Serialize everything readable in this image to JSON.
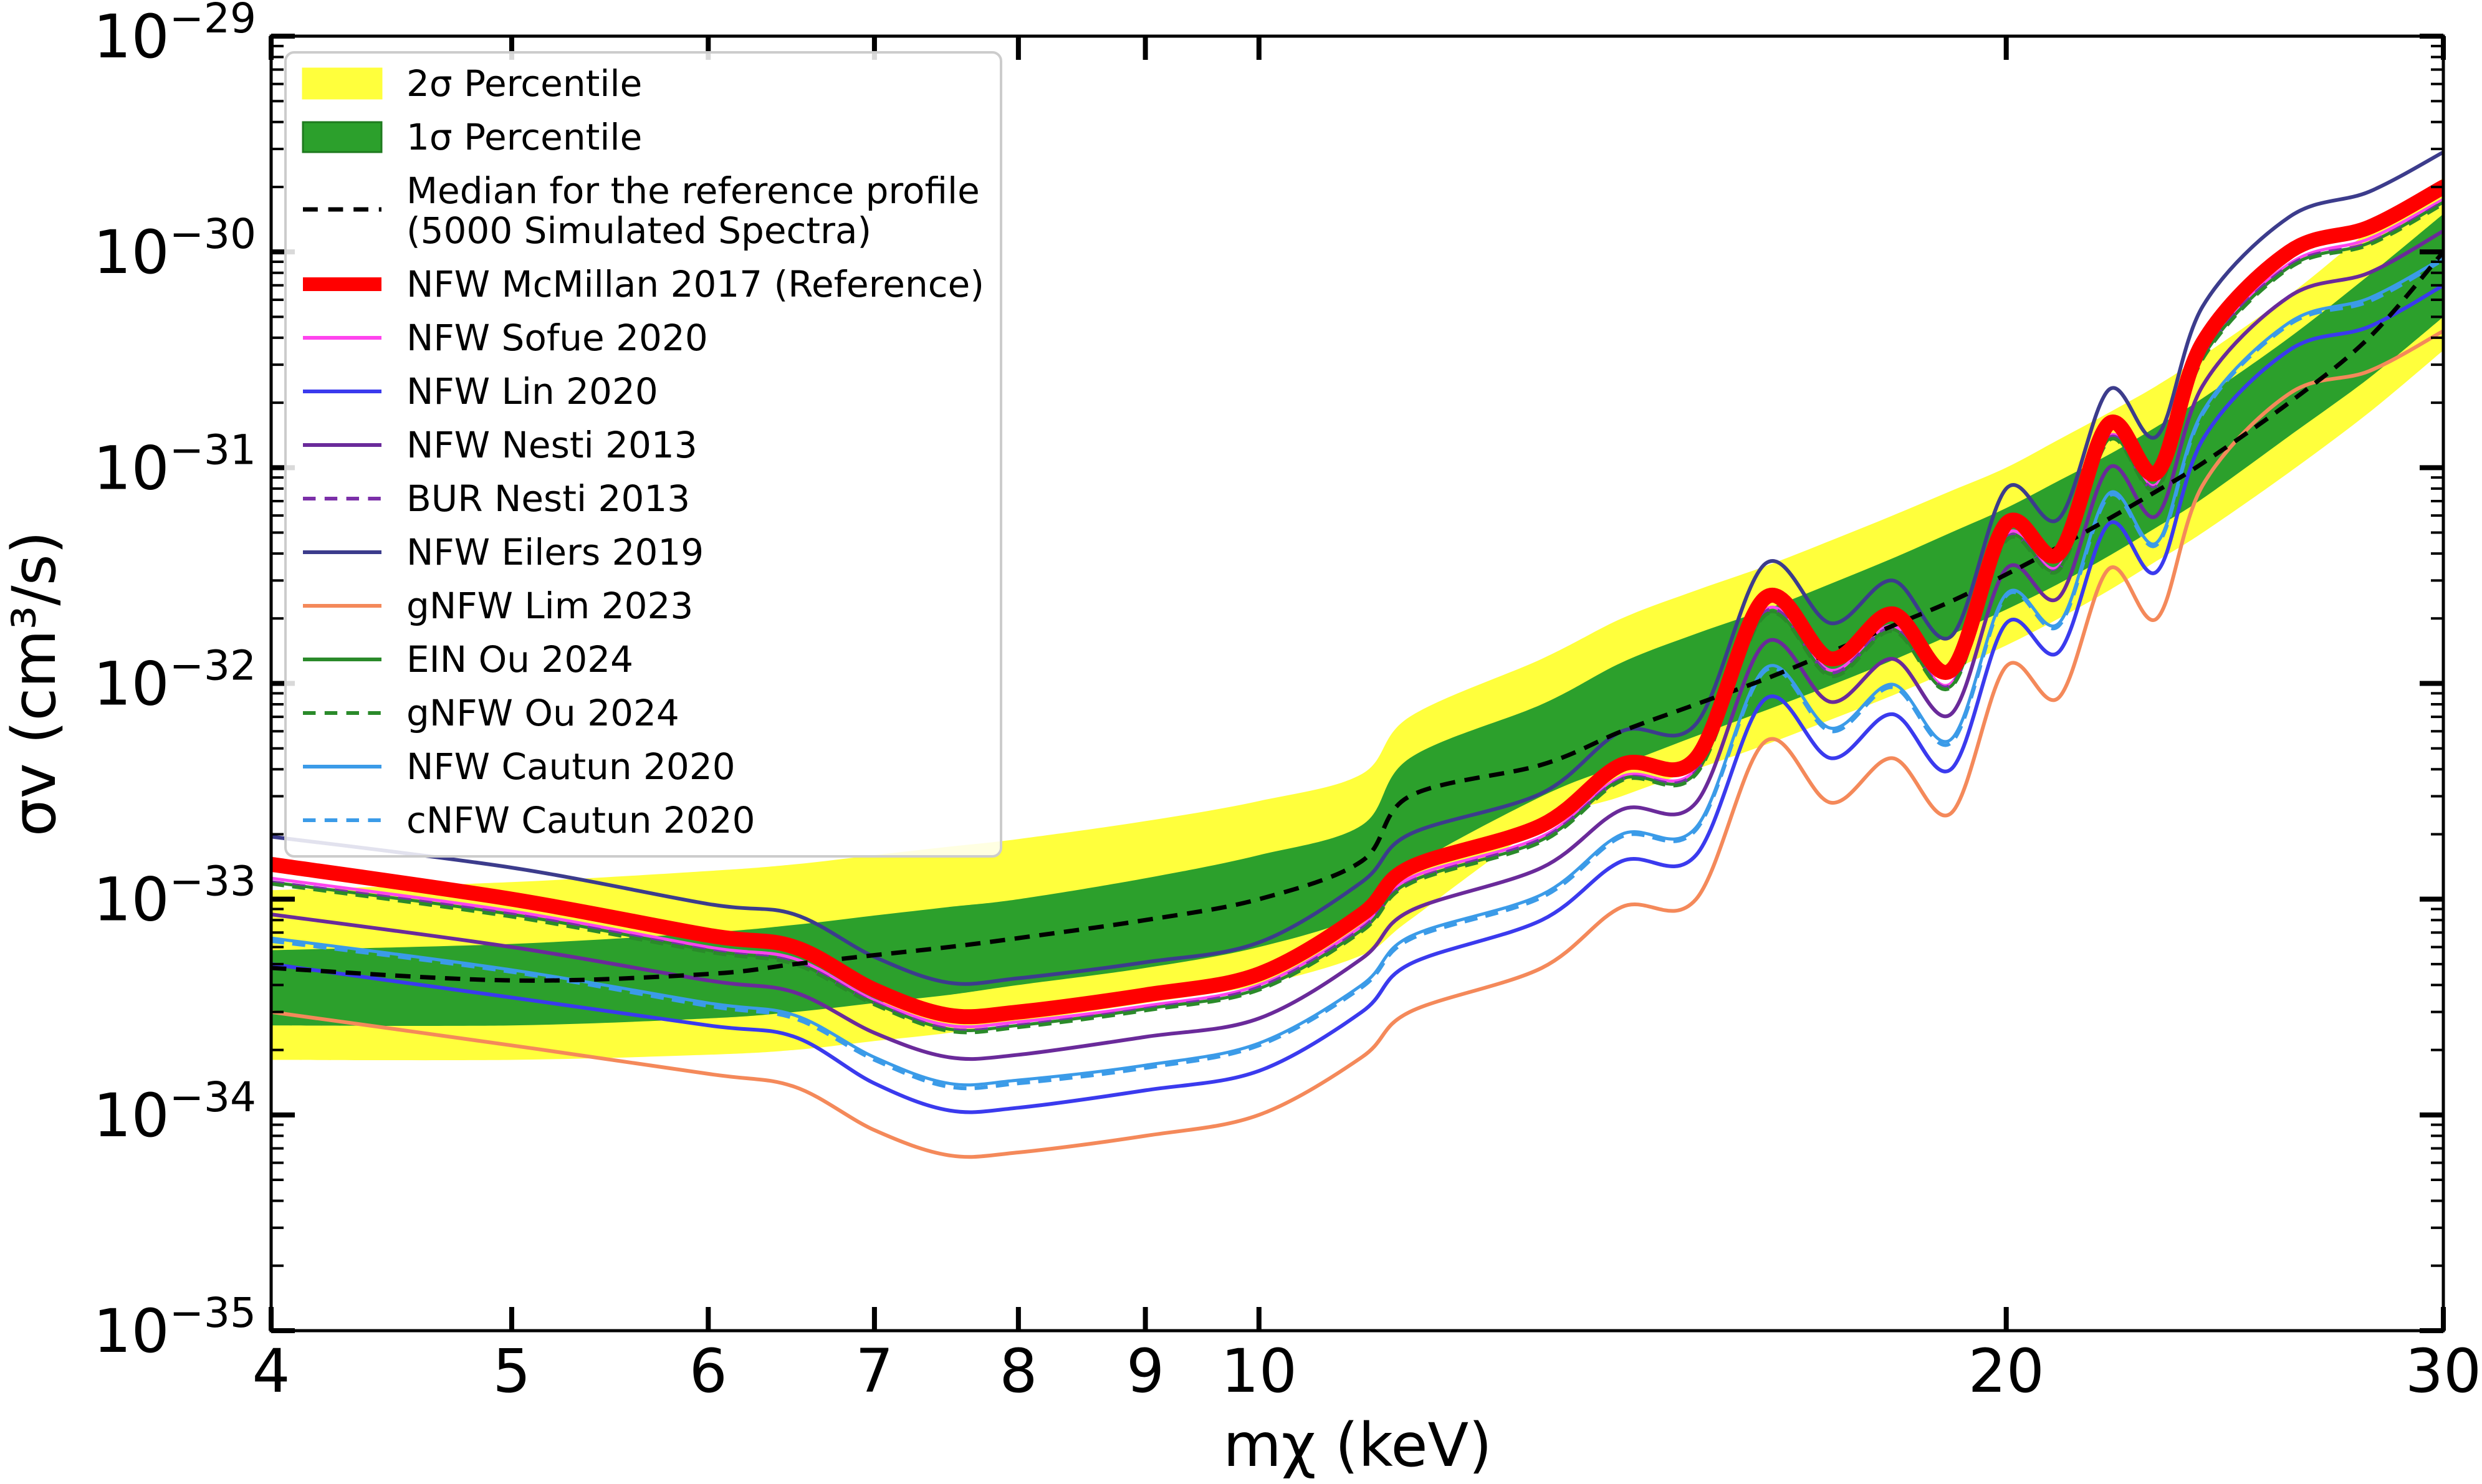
{
  "chart_data": {
    "type": "line",
    "xlabel": "mχ (keV)",
    "ylabel": "σv (cm³/s)",
    "xscale": "log",
    "yscale": "log",
    "xlim": [
      4,
      30
    ],
    "ylim": [
      1e-35,
      1e-29
    ],
    "grid": false,
    "legend_position": "top-left",
    "x_ticks": [
      {
        "value": 4,
        "label": "4"
      },
      {
        "value": 5,
        "label": "5"
      },
      {
        "value": 6,
        "label": "6"
      },
      {
        "value": 7,
        "label": "7"
      },
      {
        "value": 8,
        "label": "8"
      },
      {
        "value": 9,
        "label": "9"
      },
      {
        "value": 10,
        "label": "10"
      },
      {
        "value": 20,
        "label": "20"
      },
      {
        "value": 30,
        "label": "30"
      }
    ],
    "y_ticks": [
      {
        "value": 1e-35,
        "base": "10",
        "exp": "−35"
      },
      {
        "value": 1e-34,
        "base": "10",
        "exp": "−34"
      },
      {
        "value": 1e-33,
        "base": "10",
        "exp": "−33"
      },
      {
        "value": 1e-32,
        "base": "10",
        "exp": "−32"
      },
      {
        "value": 1e-31,
        "base": "10",
        "exp": "−31"
      },
      {
        "value": 1e-30,
        "base": "10",
        "exp": "−30"
      },
      {
        "value": 1e-29,
        "base": "10",
        "exp": "−29"
      }
    ],
    "x": [
      4,
      5,
      6,
      6.5,
      7,
      7.5,
      8,
      9,
      10,
      11,
      11.5,
      13,
      14,
      15,
      16,
      17,
      18,
      19,
      20,
      21,
      22,
      23,
      24,
      26,
      28,
      30
    ],
    "bands": [
      {
        "name": "2σ Percentile",
        "color": "#ffff3c",
        "lower": [
          1.8e-34,
          1.8e-34,
          1.9e-34,
          2e-34,
          2.2e-34,
          2.4e-34,
          2.7e-34,
          3.3e-34,
          4e-34,
          5.5e-34,
          8e-34,
          2.2e-33,
          3e-33,
          4e-33,
          5.2e-33,
          6.8e-33,
          8.8e-33,
          1.15e-32,
          1.5e-32,
          2e-32,
          2.7e-32,
          3.7e-32,
          5e-32,
          9.5e-32,
          1.8e-31,
          3.5e-31
        ],
        "upper": [
          1.1e-33,
          1.2e-33,
          1.35e-33,
          1.45e-33,
          1.6e-33,
          1.75e-33,
          1.9e-33,
          2.3e-33,
          2.85e-33,
          3.8e-33,
          7e-33,
          1.3e-32,
          2e-32,
          2.7e-32,
          3.5e-32,
          4.6e-32,
          6e-32,
          7.8e-32,
          1e-31,
          1.35e-31,
          1.8e-31,
          2.4e-31,
          3.3e-31,
          6.3e-31,
          1.25e-30,
          2.2e-30
        ]
      },
      {
        "name": "1σ Percentile",
        "color": "#2ca02c",
        "lower": [
          2.6e-34,
          2.6e-34,
          2.8e-34,
          3e-34,
          3.3e-34,
          3.6e-34,
          4e-34,
          4.8e-34,
          6e-34,
          8.5e-34,
          1.4e-33,
          3e-33,
          4.2e-33,
          5.7e-33,
          7.5e-33,
          9.8e-33,
          1.28e-32,
          1.68e-32,
          2.2e-32,
          2.9e-32,
          3.9e-32,
          5.3e-32,
          7.2e-32,
          1.4e-31,
          2.6e-31,
          5e-31
        ],
        "upper": [
          5.8e-34,
          6.2e-34,
          7e-34,
          7.6e-34,
          8.4e-34,
          9.2e-34,
          1e-33,
          1.25e-33,
          1.6e-33,
          2.2e-33,
          4.5e-33,
          8e-33,
          1.25e-32,
          1.7e-32,
          2.2e-32,
          2.9e-32,
          3.8e-32,
          5e-32,
          6.5e-32,
          8.7e-32,
          1.15e-31,
          1.55e-31,
          2.1e-31,
          4e-31,
          7.8e-31,
          1.5e-30
        ]
      }
    ],
    "series": [
      {
        "name": "Median for the reference profile\n(5000 Simulated Spectra)",
        "color": "#000000",
        "dash": true,
        "width": 7,
        "values": [
          4.8e-34,
          4.2e-34,
          4.5e-34,
          5e-34,
          5.5e-34,
          6e-34,
          6.6e-34,
          8e-34,
          1e-33,
          1.5e-33,
          3e-33,
          4.2e-33,
          6e-33,
          8e-33,
          1.05e-32,
          1.4e-32,
          1.85e-32,
          2.4e-32,
          3.2e-32,
          4.3e-32,
          5.8e-32,
          7.8e-32,
          1.05e-31,
          2e-31,
          4e-31,
          1e-30
        ]
      },
      {
        "name": "NFW McMillan 2017 (Reference)",
        "color": "#ff0000",
        "dash": false,
        "width": 24,
        "values": [
          1.45e-33,
          1e-33,
          6.8e-34,
          6e-34,
          3.8e-34,
          2.9e-34,
          3e-34,
          3.6e-34,
          4.5e-34,
          8.5e-34,
          1.4e-33,
          2.2e-33,
          4.2e-33,
          4.5e-33,
          2.5e-32,
          1.3e-32,
          2.1e-32,
          1.15e-32,
          5.5e-32,
          4e-32,
          1.6e-31,
          9.5e-32,
          3.8e-31,
          1e-30,
          1.3e-30,
          2e-30
        ]
      },
      {
        "name": "NFW Sofue 2020",
        "color": "#ff44ee",
        "dash": false,
        "width": 5,
        "values": [
          1.25e-33,
          8.8e-34,
          6e-34,
          5.3e-34,
          3.4e-34,
          2.6e-34,
          2.7e-34,
          3.2e-34,
          4e-34,
          7.5e-34,
          1.25e-33,
          1.95e-33,
          3.7e-33,
          4e-33,
          2.2e-32,
          1.15e-32,
          1.85e-32,
          1e-32,
          4.9e-32,
          3.5e-32,
          1.4e-31,
          8.4e-32,
          3.4e-31,
          8.8e-31,
          1.15e-30,
          1.75e-30
        ]
      },
      {
        "name": "NFW Lin 2020",
        "color": "#3a3aee",
        "dash": false,
        "width": 6,
        "values": [
          5e-34,
          3.5e-34,
          2.6e-34,
          2.3e-34,
          1.4e-34,
          1.05e-34,
          1.08e-34,
          1.3e-34,
          1.6e-34,
          3e-34,
          5e-34,
          8e-34,
          1.5e-33,
          1.6e-33,
          8.5e-33,
          4.5e-33,
          7.2e-33,
          4e-33,
          1.9e-32,
          1.4e-32,
          5.5e-32,
          3.3e-32,
          1.35e-31,
          3.5e-31,
          4.5e-31,
          7e-31
        ]
      },
      {
        "name": "NFW Nesti 2013",
        "color": "#6a2a9a",
        "dash": false,
        "width": 6,
        "values": [
          8.5e-34,
          6e-34,
          4.2e-34,
          3.7e-34,
          2.4e-34,
          1.85e-34,
          1.9e-34,
          2.3e-34,
          2.8e-34,
          5.3e-34,
          8.8e-34,
          1.4e-33,
          2.6e-33,
          2.8e-33,
          1.55e-32,
          8.2e-33,
          1.3e-32,
          7.2e-33,
          3.4e-32,
          2.5e-32,
          1e-31,
          6e-32,
          2.4e-31,
          6.2e-31,
          8e-31,
          1.25e-30
        ]
      },
      {
        "name": "BUR Nesti 2013",
        "color": "#7b2fa8",
        "dash": true,
        "width": 6,
        "values": [
          1.2e-33,
          8.5e-34,
          5.8e-34,
          5.1e-34,
          3.3e-34,
          2.5e-34,
          2.6e-34,
          3.1e-34,
          3.9e-34,
          7.3e-34,
          1.2e-33,
          1.9e-33,
          3.6e-33,
          3.9e-33,
          2.15e-32,
          1.12e-32,
          1.8e-32,
          9.8e-33,
          4.7e-32,
          3.4e-32,
          1.37e-31,
          8.2e-32,
          3.3e-31,
          8.6e-31,
          1.1e-30,
          1.7e-30
        ]
      },
      {
        "name": "NFW Eilers 2019",
        "color": "#3c3c8c",
        "dash": false,
        "width": 6,
        "values": [
          1.95e-33,
          1.4e-33,
          9.5e-34,
          8.5e-34,
          5.4e-34,
          4.1e-34,
          4.3e-34,
          5.1e-34,
          6.3e-34,
          1.2e-33,
          2e-33,
          3.1e-33,
          6e-33,
          6.5e-33,
          3.6e-32,
          1.9e-32,
          3e-32,
          1.65e-32,
          8e-32,
          5.8e-32,
          2.3e-31,
          1.4e-31,
          5.6e-31,
          1.45e-30,
          1.9e-30,
          2.9e-30
        ]
      },
      {
        "name": "gNFW Lim 2023",
        "color": "#f4895a",
        "dash": false,
        "width": 6,
        "values": [
          3e-34,
          2.1e-34,
          1.55e-34,
          1.35e-34,
          8.5e-35,
          6.5e-35,
          6.7e-35,
          8e-35,
          1e-34,
          1.85e-34,
          3e-34,
          4.8e-34,
          9.2e-34,
          1e-33,
          5.4e-33,
          2.8e-33,
          4.5e-33,
          2.5e-33,
          1.2e-32,
          8.6e-33,
          3.4e-32,
          2e-32,
          8.3e-32,
          2.2e-31,
          2.8e-31,
          4.3e-31
        ]
      },
      {
        "name": "EIN Ou 2024",
        "color": "#2a8a2a",
        "dash": false,
        "width": 5,
        "values": [
          1.2e-33,
          8.5e-34,
          5.8e-34,
          5.1e-34,
          3.3e-34,
          2.5e-34,
          2.6e-34,
          3.1e-34,
          3.85e-34,
          7.2e-34,
          1.2e-33,
          1.88e-33,
          3.6e-33,
          3.85e-33,
          2.1e-32,
          1.1e-32,
          1.78e-32,
          9.7e-33,
          4.7e-32,
          3.4e-32,
          1.36e-31,
          8.1e-32,
          3.25e-31,
          8.5e-31,
          1.1e-30,
          1.7e-30
        ]
      },
      {
        "name": "gNFW Ou 2024",
        "color": "#2a8a2a",
        "dash": true,
        "width": 6,
        "values": [
          1.18e-33,
          8.3e-34,
          5.7e-34,
          5e-34,
          3.25e-34,
          2.45e-34,
          2.55e-34,
          3.05e-34,
          3.8e-34,
          7.1e-34,
          1.18e-33,
          1.85e-33,
          3.55e-33,
          3.8e-33,
          2.08e-32,
          1.08e-32,
          1.75e-32,
          9.6e-33,
          4.6e-32,
          3.35e-32,
          1.34e-31,
          8e-32,
          3.2e-31,
          8.4e-31,
          1.08e-30,
          1.67e-30
        ]
      },
      {
        "name": "NFW Cautun 2020",
        "color": "#3b9be8",
        "dash": false,
        "width": 5,
        "values": [
          6.6e-34,
          4.7e-34,
          3.3e-34,
          2.9e-34,
          1.85e-34,
          1.4e-34,
          1.45e-34,
          1.7e-34,
          2.15e-34,
          4e-34,
          6.7e-34,
          1.05e-33,
          2e-33,
          2.15e-33,
          1.18e-32,
          6.2e-33,
          9.9e-33,
          5.5e-33,
          2.6e-32,
          1.9e-32,
          7.6e-32,
          4.5e-32,
          1.82e-31,
          4.7e-31,
          6.1e-31,
          9.4e-31
        ]
      },
      {
        "name": "cNFW Cautun 2020",
        "color": "#3b9be8",
        "dash": true,
        "width": 6,
        "values": [
          6.4e-34,
          4.6e-34,
          3.2e-34,
          2.8e-34,
          1.8e-34,
          1.35e-34,
          1.4e-34,
          1.65e-34,
          2.1e-34,
          3.9e-34,
          6.5e-34,
          1.02e-33,
          1.95e-33,
          2.1e-33,
          1.15e-32,
          6e-33,
          9.6e-33,
          5.3e-33,
          2.55e-32,
          1.85e-32,
          7.4e-32,
          4.4e-32,
          1.78e-31,
          4.6e-31,
          5.9e-31,
          9.2e-31
        ]
      }
    ],
    "legend": [
      {
        "label": "2σ Percentile",
        "kind": "patch",
        "color": "#ffff3c",
        "edge": "#ffff3c"
      },
      {
        "label": "1σ Percentile",
        "kind": "patch",
        "color": "#2ca02c",
        "edge": "#1e7a1e"
      },
      {
        "label": "Median for the reference profile",
        "label2": "(5000 Simulated Spectra)",
        "kind": "line",
        "color": "#000000",
        "dash": true,
        "width": 7
      },
      {
        "label": "NFW McMillan 2017 (Reference)",
        "kind": "line",
        "color": "#ff0000",
        "dash": false,
        "width": 22
      },
      {
        "label": "NFW Sofue 2020",
        "kind": "line",
        "color": "#ff44ee",
        "dash": false,
        "width": 6
      },
      {
        "label": "NFW Lin 2020",
        "kind": "line",
        "color": "#3a3aee",
        "dash": false,
        "width": 6
      },
      {
        "label": "NFW Nesti 2013",
        "kind": "line",
        "color": "#6a2a9a",
        "dash": false,
        "width": 6
      },
      {
        "label": "BUR Nesti 2013",
        "kind": "line",
        "color": "#7b2fa8",
        "dash": true,
        "width": 6
      },
      {
        "label": "NFW Eilers 2019",
        "kind": "line",
        "color": "#3c3c8c",
        "dash": false,
        "width": 6
      },
      {
        "label": "gNFW Lim 2023",
        "kind": "line",
        "color": "#f4895a",
        "dash": false,
        "width": 6
      },
      {
        "label": "EIN Ou 2024",
        "kind": "line",
        "color": "#2a8a2a",
        "dash": false,
        "width": 6
      },
      {
        "label": "gNFW Ou 2024",
        "kind": "line",
        "color": "#2a8a2a",
        "dash": true,
        "width": 6
      },
      {
        "label": "NFW Cautun 2020",
        "kind": "line",
        "color": "#3b9be8",
        "dash": false,
        "width": 6
      },
      {
        "label": "cNFW Cautun 2020",
        "kind": "line",
        "color": "#3b9be8",
        "dash": true,
        "width": 6
      }
    ]
  }
}
